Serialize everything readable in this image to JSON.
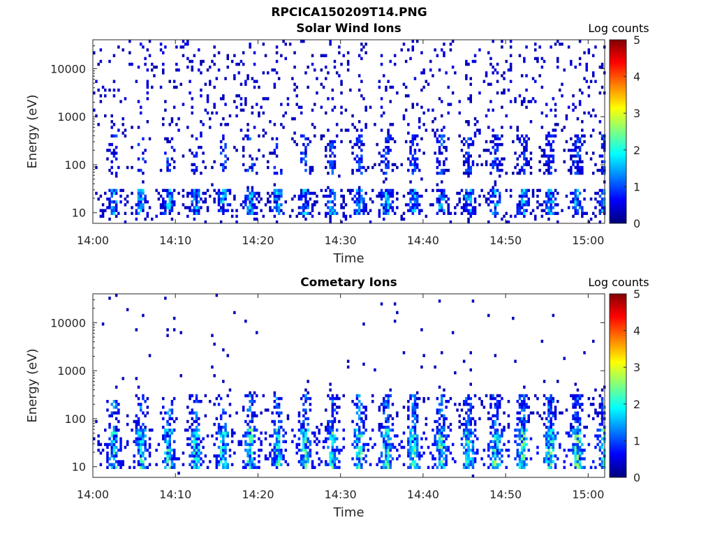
{
  "figure": {
    "title": "RPCICA150209T14.PNG"
  },
  "colors": {
    "colormap": [
      "#00008f",
      "#0000ff",
      "#0080ff",
      "#00ffff",
      "#80ff80",
      "#ffff00",
      "#ff8000",
      "#ff0000",
      "#800000"
    ]
  },
  "chart_data": [
    {
      "type": "heatmap",
      "title": "Solar Wind Ions",
      "xlabel": "Time",
      "ylabel": "Energy (eV)",
      "x_ticks": [
        "14:00",
        "14:10",
        "14:20",
        "14:30",
        "14:40",
        "14:50",
        "15:00"
      ],
      "x_range": [
        "14:00",
        "15:02"
      ],
      "y_scale": "log",
      "y_ticks": [
        "10",
        "100",
        "1000",
        "10000"
      ],
      "y_range": [
        6,
        40000
      ],
      "colorbar": {
        "label": "Log counts",
        "range": [
          0,
          5
        ],
        "ticks": [
          "0",
          "1",
          "2",
          "3",
          "4",
          "5"
        ]
      },
      "description_points": {
        "low_energy_band_eV": [
          10,
          30
        ],
        "mid_band_eV": [
          60,
          400
        ],
        "pulse_period_min": 3.3,
        "peak_log_counts": 2.2
      }
    },
    {
      "type": "heatmap",
      "title": "Cometary Ions",
      "xlabel": "Time",
      "ylabel": "Energy (eV)",
      "x_ticks": [
        "14:00",
        "14:10",
        "14:20",
        "14:30",
        "14:40",
        "14:50",
        "15:00"
      ],
      "x_range": [
        "14:00",
        "15:02"
      ],
      "y_scale": "log",
      "y_ticks": [
        "10",
        "100",
        "1000",
        "10000"
      ],
      "y_range": [
        6,
        40000
      ],
      "colorbar": {
        "label": "Log counts",
        "range": [
          0,
          5
        ],
        "ticks": [
          "0",
          "1",
          "2",
          "3",
          "4",
          "5"
        ]
      },
      "description_points": {
        "main_band_eV": [
          8,
          300
        ],
        "pulse_period_min": 3.3,
        "peak_log_counts": 2.5
      }
    }
  ]
}
